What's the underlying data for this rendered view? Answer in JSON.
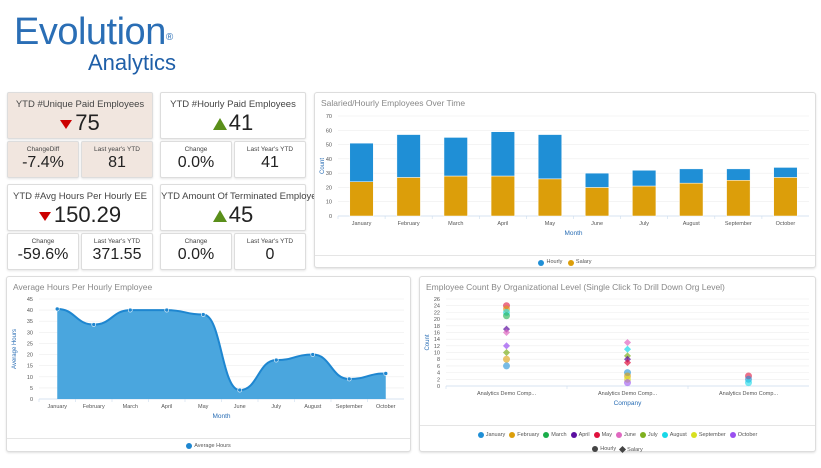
{
  "logo": {
    "line1": "Evolution",
    "line2": "Analytics",
    "reg": "®"
  },
  "kpis": [
    {
      "title": "YTD #Unique Paid Employees",
      "value": "75",
      "trend": "down",
      "highlight": true,
      "sub": [
        {
          "label": "ChangeDiff",
          "value": "-7.4%"
        },
        {
          "label": "Last year's YTD",
          "value": "81"
        }
      ]
    },
    {
      "title": "YTD #Hourly Paid Employees",
      "value": "41",
      "trend": "up",
      "highlight": false,
      "sub": [
        {
          "label": "Change",
          "value": "0.0%"
        },
        {
          "label": "Last Year's YTD",
          "value": "41"
        }
      ]
    },
    {
      "title": "YTD #Avg Hours Per Hourly EE",
      "value": "150.29",
      "trend": "down",
      "highlight": false,
      "sub": [
        {
          "label": "Change",
          "value": "-59.6%"
        },
        {
          "label": "Last Year's YTD",
          "value": "371.55"
        }
      ]
    },
    {
      "title": "YTD Amount Of Terminated Employees",
      "value": "45",
      "trend": "up",
      "highlight": false,
      "sub": [
        {
          "label": "Change",
          "value": "0.0%"
        },
        {
          "label": "Last Year's YTD",
          "value": "0"
        }
      ]
    }
  ],
  "colors": {
    "hourly": "#1f8fd6",
    "salary": "#dc9e0a",
    "area": "#4aa6de",
    "line": "#1e86d0",
    "down": "#cc0000",
    "up": "#5a8f1a"
  },
  "chart_data": [
    {
      "type": "bar",
      "stacked": true,
      "title": "Salaried/Hourly Employees Over Time",
      "xlabel": "Month",
      "ylabel": "Count",
      "ylim": [
        0,
        70
      ],
      "yticks": [
        0,
        10,
        20,
        30,
        40,
        50,
        60,
        70
      ],
      "grid": true,
      "legend": "bottom",
      "categories": [
        "January",
        "February",
        "March",
        "April",
        "May",
        "June",
        "July",
        "August",
        "September",
        "October"
      ],
      "series": [
        {
          "name": "Salary",
          "values": [
            24,
            27,
            28,
            28,
            26,
            20,
            21,
            23,
            25,
            27
          ]
        },
        {
          "name": "Hourly",
          "values": [
            27,
            30,
            27,
            31,
            31,
            10,
            11,
            10,
            8,
            7
          ]
        }
      ]
    },
    {
      "type": "area",
      "title": "Average Hours Per Hourly Employee",
      "xlabel": "Month",
      "ylabel": "Average Hours",
      "ylim": [
        0,
        45
      ],
      "yticks": [
        0,
        5,
        10,
        15,
        20,
        25,
        30,
        35,
        40,
        45
      ],
      "grid": true,
      "legend": "bottom",
      "categories": [
        "January",
        "February",
        "March",
        "April",
        "May",
        "June",
        "July",
        "August",
        "September",
        "October"
      ],
      "series": [
        {
          "name": "Average Hours",
          "values": [
            40.5,
            33.5,
            40,
            40,
            38,
            4,
            17.5,
            20,
            9,
            11.5
          ]
        }
      ]
    },
    {
      "type": "scatter",
      "title": "Employee Count By Organizational Level (Single Click To Drill Down Org Level)",
      "xlabel": "Company",
      "ylabel": "Count",
      "ylim": [
        0,
        26
      ],
      "yticks": [
        0,
        2,
        4,
        6,
        8,
        10,
        12,
        14,
        16,
        18,
        20,
        22,
        24,
        26
      ],
      "grid": true,
      "legend": "bottom",
      "categories": [
        "Analytics Demo Comp...",
        "Analytics Demo Comp...",
        "Analytics Demo Comp..."
      ],
      "months": [
        {
          "name": "January",
          "color": "#1f8fd6"
        },
        {
          "name": "February",
          "color": "#dc9e0a"
        },
        {
          "name": "March",
          "color": "#1aad4a"
        },
        {
          "name": "April",
          "color": "#5b0fa0"
        },
        {
          "name": "May",
          "color": "#e0103c"
        },
        {
          "name": "June",
          "color": "#e068c0"
        },
        {
          "name": "July",
          "color": "#7fb020"
        },
        {
          "name": "August",
          "color": "#18d8e8"
        },
        {
          "name": "September",
          "color": "#d8e020"
        },
        {
          "name": "October",
          "color": "#9a50f0"
        }
      ],
      "types": [
        {
          "name": "Hourly",
          "marker": "circle"
        },
        {
          "name": "Salary",
          "marker": "diamond"
        }
      ],
      "points": [
        {
          "company": 0,
          "month": "May",
          "type": "Hourly",
          "value": 24
        },
        {
          "company": 0,
          "month": "February",
          "type": "Hourly",
          "value": 23
        },
        {
          "company": 0,
          "month": "August",
          "type": "Hourly",
          "value": 22
        },
        {
          "company": 0,
          "month": "March",
          "type": "Hourly",
          "value": 21
        },
        {
          "company": 0,
          "month": "April",
          "type": "Salary",
          "value": 17
        },
        {
          "company": 0,
          "month": "June",
          "type": "Salary",
          "value": 16
        },
        {
          "company": 0,
          "month": "October",
          "type": "Salary",
          "value": 12
        },
        {
          "company": 0,
          "month": "July",
          "type": "Salary",
          "value": 10
        },
        {
          "company": 0,
          "month": "February",
          "type": "Hourly",
          "value": 8
        },
        {
          "company": 0,
          "month": "January",
          "type": "Hourly",
          "value": 6
        },
        {
          "company": 1,
          "month": "June",
          "type": "Salary",
          "value": 13
        },
        {
          "company": 1,
          "month": "August",
          "type": "Salary",
          "value": 11
        },
        {
          "company": 1,
          "month": "July",
          "type": "Salary",
          "value": 9
        },
        {
          "company": 1,
          "month": "April",
          "type": "Salary",
          "value": 8
        },
        {
          "company": 1,
          "month": "May",
          "type": "Salary",
          "value": 7
        },
        {
          "company": 1,
          "month": "January",
          "type": "Hourly",
          "value": 4
        },
        {
          "company": 1,
          "month": "February",
          "type": "Hourly",
          "value": 3
        },
        {
          "company": 1,
          "month": "September",
          "type": "Hourly",
          "value": 2
        },
        {
          "company": 1,
          "month": "October",
          "type": "Hourly",
          "value": 1
        },
        {
          "company": 2,
          "month": "May",
          "type": "Hourly",
          "value": 3
        },
        {
          "company": 2,
          "month": "January",
          "type": "Hourly",
          "value": 2
        },
        {
          "company": 2,
          "month": "August",
          "type": "Hourly",
          "value": 1
        }
      ]
    }
  ]
}
